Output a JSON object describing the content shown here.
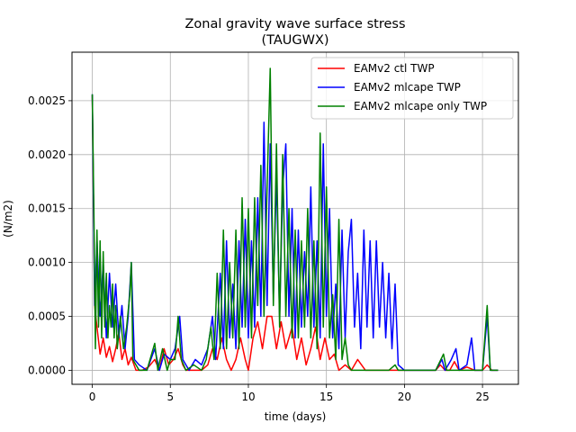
{
  "chart_data": {
    "type": "line",
    "title": "Zonal gravity wave surface stress",
    "subtitle": "(TAUGWX)",
    "xlabel": "time (days)",
    "ylabel": "(N/m2)",
    "xlim": [
      -1.3,
      27.3
    ],
    "ylim": [
      -0.00013,
      0.00295
    ],
    "xticks": [
      0,
      5,
      10,
      15,
      20,
      25
    ],
    "xtick_labels": [
      "0",
      "5",
      "10",
      "15",
      "20",
      "25"
    ],
    "yticks": [
      0,
      0.0005,
      0.001,
      0.0015,
      0.002,
      0.0025
    ],
    "ytick_labels": [
      "0.0000",
      "0.0005",
      "0.0010",
      "0.0015",
      "0.0020",
      "0.0025"
    ],
    "grid": true,
    "legend_position": "upper-right",
    "series": [
      {
        "name": "EAMv2 ctl TWP",
        "color": "#ff0000",
        "points": [
          [
            0,
            0.00255
          ],
          [
            0.15,
            0.0006
          ],
          [
            0.3,
            0.0004
          ],
          [
            0.5,
            0.00015
          ],
          [
            0.7,
            0.0003
          ],
          [
            0.9,
            0.00012
          ],
          [
            1.1,
            0.00022
          ],
          [
            1.3,
            8e-05
          ],
          [
            1.5,
            0.0002
          ],
          [
            1.7,
            0.00035
          ],
          [
            1.9,
            0.0001
          ],
          [
            2.1,
            0.0002
          ],
          [
            2.3,
            5e-05
          ],
          [
            2.5,
            0.00012
          ],
          [
            2.8,
            0.0
          ],
          [
            3.2,
            0.0
          ],
          [
            3.6,
            3e-05
          ],
          [
            4.0,
            0.0001
          ],
          [
            4.3,
            0.0
          ],
          [
            4.6,
            0.0002
          ],
          [
            4.9,
            5e-05
          ],
          [
            5.2,
            0.0001
          ],
          [
            5.5,
            0.0002
          ],
          [
            5.8,
            5e-05
          ],
          [
            6.0,
            0.0
          ],
          [
            6.5,
            0.0
          ],
          [
            7.0,
            0.0
          ],
          [
            7.4,
            5e-05
          ],
          [
            7.7,
            0.0002
          ],
          [
            8.0,
            0.0001
          ],
          [
            8.3,
            0.0003
          ],
          [
            8.6,
            0.0001
          ],
          [
            8.9,
            0.0
          ],
          [
            9.2,
            0.0001
          ],
          [
            9.5,
            0.0003
          ],
          [
            9.8,
            0.0001
          ],
          [
            10.0,
            0.0
          ],
          [
            10.3,
            0.0003
          ],
          [
            10.6,
            0.00045
          ],
          [
            10.9,
            0.0002
          ],
          [
            11.2,
            0.0005
          ],
          [
            11.5,
            0.0005
          ],
          [
            11.8,
            0.0002
          ],
          [
            12.1,
            0.00045
          ],
          [
            12.4,
            0.0002
          ],
          [
            12.8,
            0.0004
          ],
          [
            13.1,
            0.0001
          ],
          [
            13.4,
            0.0003
          ],
          [
            13.7,
            5e-05
          ],
          [
            14.0,
            0.0002
          ],
          [
            14.3,
            0.0004
          ],
          [
            14.6,
            0.0001
          ],
          [
            14.9,
            0.0003
          ],
          [
            15.2,
            0.0001
          ],
          [
            15.5,
            0.00015
          ],
          [
            15.8,
            0.0
          ],
          [
            16.2,
            5e-05
          ],
          [
            16.6,
            0.0
          ],
          [
            17.0,
            0.0001
          ],
          [
            17.5,
            0.0
          ],
          [
            18.0,
            0.0
          ],
          [
            18.5,
            0.0
          ],
          [
            19.0,
            0.0
          ],
          [
            19.5,
            0.0
          ],
          [
            20.0,
            0.0
          ],
          [
            21.0,
            0.0
          ],
          [
            22.0,
            0.0
          ],
          [
            22.3,
            5e-05
          ],
          [
            22.6,
            0.0
          ],
          [
            22.9,
            0.0
          ],
          [
            23.2,
            8e-05
          ],
          [
            23.5,
            0.0
          ],
          [
            24.0,
            3e-05
          ],
          [
            24.5,
            0.0
          ],
          [
            25.0,
            0.0
          ],
          [
            25.3,
            5e-05
          ],
          [
            25.6,
            0.0
          ],
          [
            26.0,
            0.0
          ]
        ]
      },
      {
        "name": "EAMv2 mlcape TWP",
        "color": "#0000ff",
        "points": [
          [
            0,
            0.00256
          ],
          [
            0.15,
            0.0006
          ],
          [
            0.3,
            0.0012
          ],
          [
            0.5,
            0.0005
          ],
          [
            0.7,
            0.001
          ],
          [
            0.9,
            0.0003
          ],
          [
            1.1,
            0.0009
          ],
          [
            1.3,
            0.0004
          ],
          [
            1.5,
            0.0008
          ],
          [
            1.7,
            0.0003
          ],
          [
            1.9,
            0.0006
          ],
          [
            2.1,
            0.0002
          ],
          [
            2.3,
            0.0005
          ],
          [
            2.5,
            0.001
          ],
          [
            2.7,
            0.0001
          ],
          [
            3.0,
            5e-05
          ],
          [
            3.5,
            0.0
          ],
          [
            4.0,
            0.0002
          ],
          [
            4.3,
            0.0
          ],
          [
            4.6,
            0.00015
          ],
          [
            5.0,
            0.0001
          ],
          [
            5.3,
            0.0002
          ],
          [
            5.6,
            0.0005
          ],
          [
            5.8,
            0.0001
          ],
          [
            6.2,
            0.0
          ],
          [
            6.6,
            0.0001
          ],
          [
            7.0,
            5e-05
          ],
          [
            7.4,
            0.0002
          ],
          [
            7.7,
            0.0005
          ],
          [
            7.9,
            0.0001
          ],
          [
            8.2,
            0.0009
          ],
          [
            8.4,
            0.0002
          ],
          [
            8.6,
            0.0012
          ],
          [
            8.8,
            0.0003
          ],
          [
            9.0,
            0.0008
          ],
          [
            9.2,
            0.0002
          ],
          [
            9.4,
            0.0012
          ],
          [
            9.6,
            0.0004
          ],
          [
            9.8,
            0.0014
          ],
          [
            10.0,
            0.0003
          ],
          [
            10.2,
            0.0012
          ],
          [
            10.4,
            0.0004
          ],
          [
            10.6,
            0.0016
          ],
          [
            10.8,
            0.0005
          ],
          [
            11.0,
            0.0023
          ],
          [
            11.2,
            0.0006
          ],
          [
            11.4,
            0.0021
          ],
          [
            11.6,
            0.0007
          ],
          [
            11.8,
            0.0018
          ],
          [
            12.0,
            0.0005
          ],
          [
            12.2,
            0.0017
          ],
          [
            12.4,
            0.0021
          ],
          [
            12.6,
            0.0005
          ],
          [
            12.8,
            0.0015
          ],
          [
            13.0,
            0.0003
          ],
          [
            13.2,
            0.0013
          ],
          [
            13.4,
            0.0004
          ],
          [
            13.6,
            0.0011
          ],
          [
            13.8,
            0.0005
          ],
          [
            14.0,
            0.0017
          ],
          [
            14.2,
            0.0004
          ],
          [
            14.4,
            0.0012
          ],
          [
            14.6,
            0.0003
          ],
          [
            14.8,
            0.0021
          ],
          [
            15.0,
            0.0005
          ],
          [
            15.2,
            0.0015
          ],
          [
            15.4,
            0.0003
          ],
          [
            15.6,
            0.0008
          ],
          [
            15.8,
            0.0002
          ],
          [
            16.0,
            0.0013
          ],
          [
            16.2,
            0.0003
          ],
          [
            16.4,
            0.0011
          ],
          [
            16.6,
            0.0014
          ],
          [
            16.8,
            0.0004
          ],
          [
            17.0,
            0.0009
          ],
          [
            17.2,
            0.0002
          ],
          [
            17.4,
            0.0013
          ],
          [
            17.6,
            0.0004
          ],
          [
            17.8,
            0.0012
          ],
          [
            18.0,
            0.0003
          ],
          [
            18.2,
            0.0012
          ],
          [
            18.4,
            0.0004
          ],
          [
            18.6,
            0.001
          ],
          [
            18.8,
            0.0003
          ],
          [
            19.0,
            0.0009
          ],
          [
            19.2,
            0.0002
          ],
          [
            19.4,
            0.0008
          ],
          [
            19.6,
            5e-05
          ],
          [
            20.0,
            0.0
          ],
          [
            21.0,
            0.0
          ],
          [
            22.0,
            0.0
          ],
          [
            22.4,
            0.0001
          ],
          [
            22.6,
            0.0
          ],
          [
            23.0,
            0.0001
          ],
          [
            23.3,
            0.0002
          ],
          [
            23.5,
            0.0
          ],
          [
            24.0,
            5e-05
          ],
          [
            24.3,
            0.0003
          ],
          [
            24.5,
            0.0
          ],
          [
            25.0,
            0.0
          ],
          [
            25.3,
            0.0005
          ],
          [
            25.5,
            0.0
          ],
          [
            26.0,
            0.0
          ]
        ]
      },
      {
        "name": "EAMv2 mlcape only TWP",
        "color": "#008000",
        "points": [
          [
            0,
            0.00256
          ],
          [
            0.1,
            0.0015
          ],
          [
            0.2,
            0.0002
          ],
          [
            0.3,
            0.0013
          ],
          [
            0.4,
            0.0004
          ],
          [
            0.5,
            0.0012
          ],
          [
            0.6,
            0.0003
          ],
          [
            0.7,
            0.0011
          ],
          [
            0.8,
            0.0004
          ],
          [
            0.9,
            0.0009
          ],
          [
            1.0,
            0.0003
          ],
          [
            1.1,
            0.0006
          ],
          [
            1.2,
            0.0004
          ],
          [
            1.3,
            0.0008
          ],
          [
            1.4,
            0.0003
          ],
          [
            1.5,
            0.0006
          ],
          [
            1.6,
            0.0002
          ],
          [
            1.8,
            0.0005
          ],
          [
            2.0,
            0.0002
          ],
          [
            2.2,
            0.0004
          ],
          [
            2.4,
            0.0007
          ],
          [
            2.5,
            0.001
          ],
          [
            2.6,
            0.0001
          ],
          [
            2.8,
            5e-05
          ],
          [
            3.0,
            0.0
          ],
          [
            3.5,
            0.0
          ],
          [
            4.0,
            0.00025
          ],
          [
            4.2,
            0.0
          ],
          [
            4.5,
            0.0002
          ],
          [
            4.8,
            0.0
          ],
          [
            5.0,
            0.0001
          ],
          [
            5.3,
            0.0001
          ],
          [
            5.5,
            0.0005
          ],
          [
            5.7,
            0.0001
          ],
          [
            6.0,
            0.0
          ],
          [
            6.5,
            5e-05
          ],
          [
            7.0,
            0.0
          ],
          [
            7.3,
            0.0001
          ],
          [
            7.6,
            0.0004
          ],
          [
            7.8,
            0.0001
          ],
          [
            8.0,
            0.0009
          ],
          [
            8.2,
            0.0002
          ],
          [
            8.4,
            0.0013
          ],
          [
            8.6,
            0.0002
          ],
          [
            8.8,
            0.001
          ],
          [
            9.0,
            0.0003
          ],
          [
            9.2,
            0.0013
          ],
          [
            9.4,
            0.0002
          ],
          [
            9.6,
            0.0016
          ],
          [
            9.8,
            0.0004
          ],
          [
            10.0,
            0.0015
          ],
          [
            10.2,
            0.0003
          ],
          [
            10.4,
            0.0016
          ],
          [
            10.6,
            0.0006
          ],
          [
            10.8,
            0.0019
          ],
          [
            11.0,
            0.0005
          ],
          [
            11.2,
            0.0017
          ],
          [
            11.4,
            0.0028
          ],
          [
            11.6,
            0.0006
          ],
          [
            11.8,
            0.0021
          ],
          [
            12.0,
            0.0004
          ],
          [
            12.2,
            0.002
          ],
          [
            12.4,
            0.0005
          ],
          [
            12.6,
            0.0015
          ],
          [
            12.8,
            0.0003
          ],
          [
            13.0,
            0.0013
          ],
          [
            13.2,
            0.0003
          ],
          [
            13.4,
            0.0012
          ],
          [
            13.6,
            0.0004
          ],
          [
            13.8,
            0.0015
          ],
          [
            14.0,
            0.0003
          ],
          [
            14.2,
            0.0012
          ],
          [
            14.4,
            0.0002
          ],
          [
            14.6,
            0.0022
          ],
          [
            14.8,
            0.0004
          ],
          [
            15.0,
            0.0017
          ],
          [
            15.2,
            0.0003
          ],
          [
            15.4,
            0.0007
          ],
          [
            15.6,
            0.0001
          ],
          [
            15.8,
            0.0014
          ],
          [
            16.0,
            0.0001
          ],
          [
            16.2,
            0.0003
          ],
          [
            16.4,
            5e-05
          ],
          [
            16.6,
            0.0
          ],
          [
            17.0,
            0.0
          ],
          [
            17.5,
            0.0
          ],
          [
            18.0,
            0.0
          ],
          [
            18.5,
            0.0
          ],
          [
            19.0,
            0.0
          ],
          [
            19.4,
            5e-05
          ],
          [
            19.6,
            0.0
          ],
          [
            20.0,
            0.0
          ],
          [
            21.0,
            0.0
          ],
          [
            22.0,
            0.0
          ],
          [
            22.5,
            0.00015
          ],
          [
            22.7,
            0.0
          ],
          [
            23.0,
            0.0
          ],
          [
            23.5,
            0.0
          ],
          [
            24.0,
            0.0
          ],
          [
            25.0,
            0.0
          ],
          [
            25.3,
            0.0006
          ],
          [
            25.5,
            0.0
          ],
          [
            26.0,
            0.0
          ]
        ]
      }
    ]
  }
}
